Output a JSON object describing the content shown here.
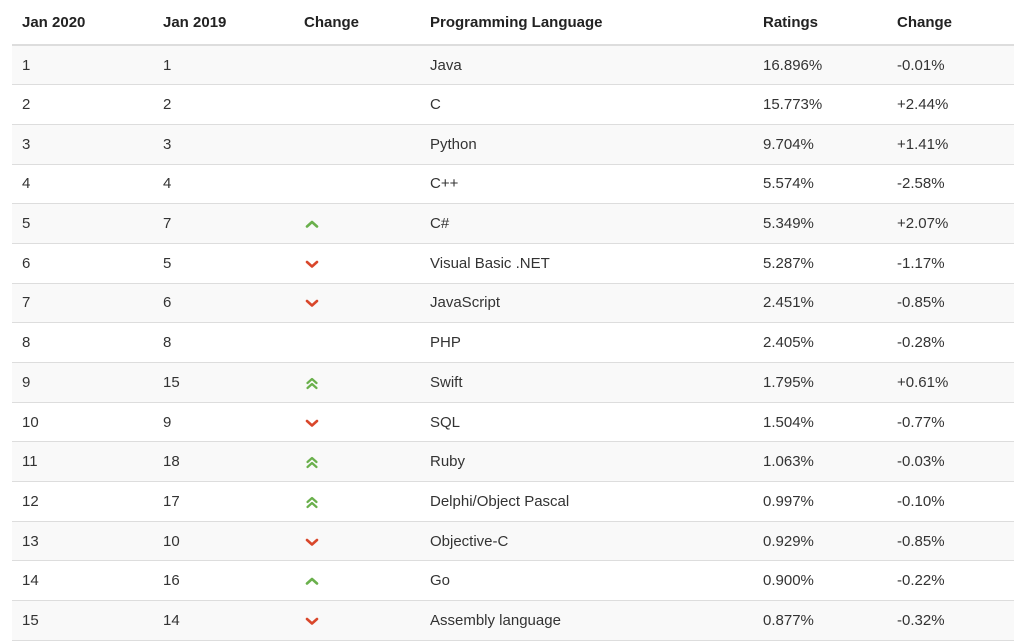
{
  "colors": {
    "up": "#6ab04c",
    "down": "#d9472b",
    "border": "#dddddd",
    "stripe": "#f9f9f9"
  },
  "headers": [
    "Jan 2020",
    "Jan 2019",
    "Change",
    "Programming Language",
    "Ratings",
    "Change"
  ],
  "rows": [
    {
      "jan2020": "1",
      "jan2019": "1",
      "trend": "none",
      "trend_icon": "",
      "language": "Java",
      "rating": "16.896%",
      "change": "-0.01%"
    },
    {
      "jan2020": "2",
      "jan2019": "2",
      "trend": "none",
      "trend_icon": "",
      "language": "C",
      "rating": "15.773%",
      "change": "+2.44%"
    },
    {
      "jan2020": "3",
      "jan2019": "3",
      "trend": "none",
      "trend_icon": "",
      "language": "Python",
      "rating": "9.704%",
      "change": "+1.41%"
    },
    {
      "jan2020": "4",
      "jan2019": "4",
      "trend": "none",
      "trend_icon": "",
      "language": "C++",
      "rating": "5.574%",
      "change": "-2.58%"
    },
    {
      "jan2020": "5",
      "jan2019": "7",
      "trend": "up",
      "trend_icon": "chevron-up-icon",
      "language": "C#",
      "rating": "5.349%",
      "change": "+2.07%"
    },
    {
      "jan2020": "6",
      "jan2019": "5",
      "trend": "down",
      "trend_icon": "chevron-down-icon",
      "language": "Visual Basic .NET",
      "rating": "5.287%",
      "change": "-1.17%"
    },
    {
      "jan2020": "7",
      "jan2019": "6",
      "trend": "down",
      "trend_icon": "chevron-down-icon",
      "language": "JavaScript",
      "rating": "2.451%",
      "change": "-0.85%"
    },
    {
      "jan2020": "8",
      "jan2019": "8",
      "trend": "none",
      "trend_icon": "",
      "language": "PHP",
      "rating": "2.405%",
      "change": "-0.28%"
    },
    {
      "jan2020": "9",
      "jan2019": "15",
      "trend": "upup",
      "trend_icon": "double-chevron-up-icon",
      "language": "Swift",
      "rating": "1.795%",
      "change": "+0.61%"
    },
    {
      "jan2020": "10",
      "jan2019": "9",
      "trend": "down",
      "trend_icon": "chevron-down-icon",
      "language": "SQL",
      "rating": "1.504%",
      "change": "-0.77%"
    },
    {
      "jan2020": "11",
      "jan2019": "18",
      "trend": "upup",
      "trend_icon": "double-chevron-up-icon",
      "language": "Ruby",
      "rating": "1.063%",
      "change": "-0.03%"
    },
    {
      "jan2020": "12",
      "jan2019": "17",
      "trend": "upup",
      "trend_icon": "double-chevron-up-icon",
      "language": "Delphi/Object Pascal",
      "rating": "0.997%",
      "change": "-0.10%"
    },
    {
      "jan2020": "13",
      "jan2019": "10",
      "trend": "down",
      "trend_icon": "chevron-down-icon",
      "language": "Objective-C",
      "rating": "0.929%",
      "change": "-0.85%"
    },
    {
      "jan2020": "14",
      "jan2019": "16",
      "trend": "up",
      "trend_icon": "chevron-up-icon",
      "language": "Go",
      "rating": "0.900%",
      "change": "-0.22%"
    },
    {
      "jan2020": "15",
      "jan2019": "14",
      "trend": "down",
      "trend_icon": "chevron-down-icon",
      "language": "Assembly language",
      "rating": "0.877%",
      "change": "-0.32%"
    }
  ]
}
